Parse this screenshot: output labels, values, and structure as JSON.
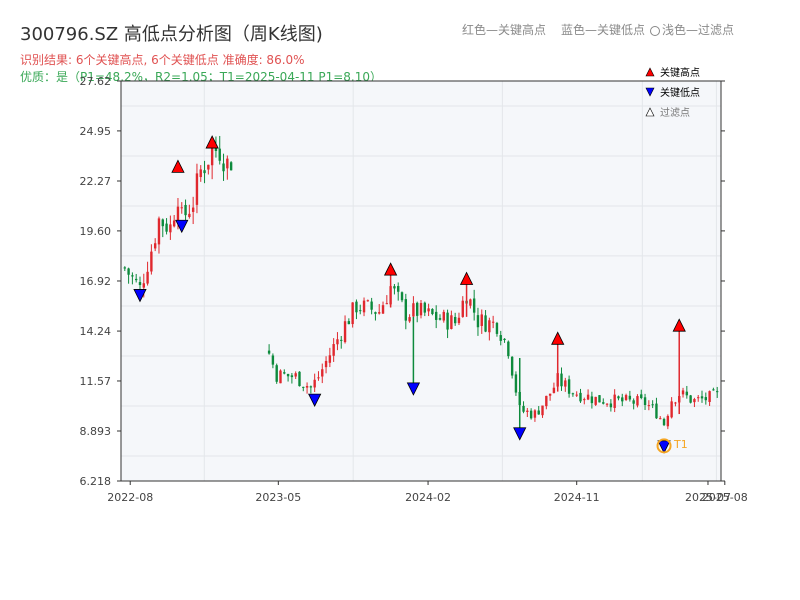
{
  "header": {
    "title": "300796.SZ 高低点分析图（周K线图)",
    "hint_red": "红色—关键高点",
    "hint_blue": "蓝色—关键低点",
    "hint_light": "浅色—过滤点",
    "result_line": "识别结果: 6个关键高点, 6个关键低点   准确度: 86.0%",
    "quality_line": "优质：是（P1=48.2%，R2=1.05；T1=2025-04-11 P1=8.10）"
  },
  "colors": {
    "up": "#e0282e",
    "down": "#0d8a3c",
    "high": "#ff0000",
    "low": "#0000ff",
    "target": "#f5a623",
    "plot_bg": "#f5f7fa"
  },
  "chart_data": {
    "type": "candlestick",
    "xlabel": "",
    "ylabel": "",
    "xlim": [
      "2022-07-15",
      "2025-07-25"
    ],
    "ylim": [
      6.218,
      27.62
    ],
    "y_ticks": [
      "27.62",
      "24.95",
      "22.27",
      "19.60",
      "16.92",
      "14.24",
      "11.57",
      "8.893",
      "6.218"
    ],
    "x_ticks": [
      {
        "label": "2022-08",
        "date": "2022-08-01"
      },
      {
        "label": "2023-05",
        "date": "2023-05-01"
      },
      {
        "label": "2024-02",
        "date": "2024-02-01"
      },
      {
        "label": "2024-11",
        "date": "2024-11-01"
      },
      {
        "label": "2025-07",
        "date": "2025-07-01"
      },
      {
        "label": "2025-08",
        "date": "2025-08-01"
      }
    ],
    "series": [
      {
        "name": "关键高点",
        "marker": "triangle-up",
        "color": "#ff0000",
        "points": [
          {
            "x": "2022-10-28",
            "y": 23.0
          },
          {
            "x": "2022-12-30",
            "y": 24.3
          },
          {
            "x": "2023-11-24",
            "y": 17.5
          },
          {
            "x": "2024-04-12",
            "y": 17.0
          },
          {
            "x": "2024-09-27",
            "y": 13.8
          },
          {
            "x": "2025-05-09",
            "y": 14.5
          }
        ]
      },
      {
        "name": "关键低点",
        "marker": "triangle-down",
        "color": "#0000ff",
        "points": [
          {
            "x": "2022-08-19",
            "y": 16.2
          },
          {
            "x": "2022-11-04",
            "y": 19.9
          },
          {
            "x": "2023-07-07",
            "y": 10.6
          },
          {
            "x": "2024-01-05",
            "y": 11.2
          },
          {
            "x": "2024-07-19",
            "y": 8.8
          },
          {
            "x": "2025-04-11",
            "y": 8.1
          }
        ]
      },
      {
        "name": "过滤点",
        "marker": "triangle-up-hollow",
        "color": "#888888",
        "points": []
      }
    ],
    "annotations": [
      {
        "label": "T1",
        "x": "2025-04-11",
        "y": 8.1
      }
    ],
    "ohlc_anchors": [
      [
        "2022-07-22",
        17.6
      ],
      [
        "2022-08-19",
        16.5
      ],
      [
        "2022-09-09",
        18.6
      ],
      [
        "2022-09-23",
        20.2
      ],
      [
        "2022-10-14",
        19.8
      ],
      [
        "2022-10-28",
        21.6
      ],
      [
        "2022-11-04",
        20.2
      ],
      [
        "2022-11-25",
        21.2
      ],
      [
        "2022-12-09",
        22.8
      ],
      [
        "2022-12-30",
        23.9
      ],
      [
        "2023-01-13",
        24.0
      ],
      [
        "2023-01-27",
        23.2
      ],
      [
        "2023-02-10",
        23.6
      ],
      [
        "2023-03-17",
        null
      ],
      [
        "2023-04-14",
        13.0
      ],
      [
        "2023-04-28",
        11.9
      ],
      [
        "2023-06-02",
        11.8
      ],
      [
        "2023-06-30",
        11.2
      ],
      [
        "2023-07-14",
        11.8
      ],
      [
        "2023-08-04",
        13.0
      ],
      [
        "2023-09-01",
        14.6
      ],
      [
        "2023-09-22",
        15.6
      ],
      [
        "2023-11-03",
        15.3
      ],
      [
        "2023-11-24",
        16.6
      ],
      [
        "2023-12-22",
        15.2
      ],
      [
        "2024-01-12",
        15.3
      ],
      [
        "2024-02-23",
        14.9
      ],
      [
        "2024-03-22",
        14.7
      ],
      [
        "2024-04-12",
        16.3
      ],
      [
        "2024-05-03",
        14.8
      ],
      [
        "2024-06-07",
        14.6
      ],
      [
        "2024-06-28",
        13.3
      ],
      [
        "2024-07-19",
        10.0
      ],
      [
        "2024-08-16",
        9.8
      ],
      [
        "2024-09-06",
        10.6
      ],
      [
        "2024-09-27",
        11.6
      ],
      [
        "2024-10-25",
        11.0
      ],
      [
        "2024-12-06",
        10.6
      ],
      [
        "2025-01-10",
        10.5
      ],
      [
        "2025-03-07",
        10.4
      ],
      [
        "2025-03-28",
        9.9
      ],
      [
        "2025-04-11",
        9.3
      ],
      [
        "2025-04-25",
        10.6
      ],
      [
        "2025-05-09",
        10.9
      ],
      [
        "2025-06-06",
        10.5
      ],
      [
        "2025-07-11",
        10.7
      ],
      [
        "2025-07-25",
        10.8
      ]
    ]
  }
}
